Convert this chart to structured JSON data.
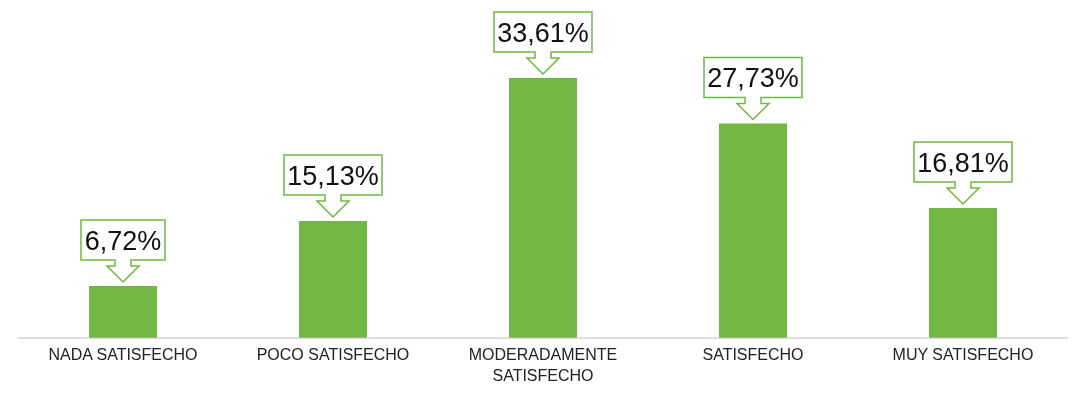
{
  "chart_data": {
    "type": "bar",
    "categories": [
      "NADA SATISFECHO",
      "POCO SATISFECHO",
      "MODERADAMENTE SATISFECHO",
      "SATISFECHO",
      "MUY SATISFECHO"
    ],
    "values": [
      6.72,
      15.13,
      33.61,
      27.73,
      16.81
    ],
    "value_labels": [
      "6,72%",
      "15,13%",
      "33,61%",
      "27,73%",
      "16,81%"
    ],
    "color": "#72b644",
    "grid": false,
    "legend": false
  }
}
